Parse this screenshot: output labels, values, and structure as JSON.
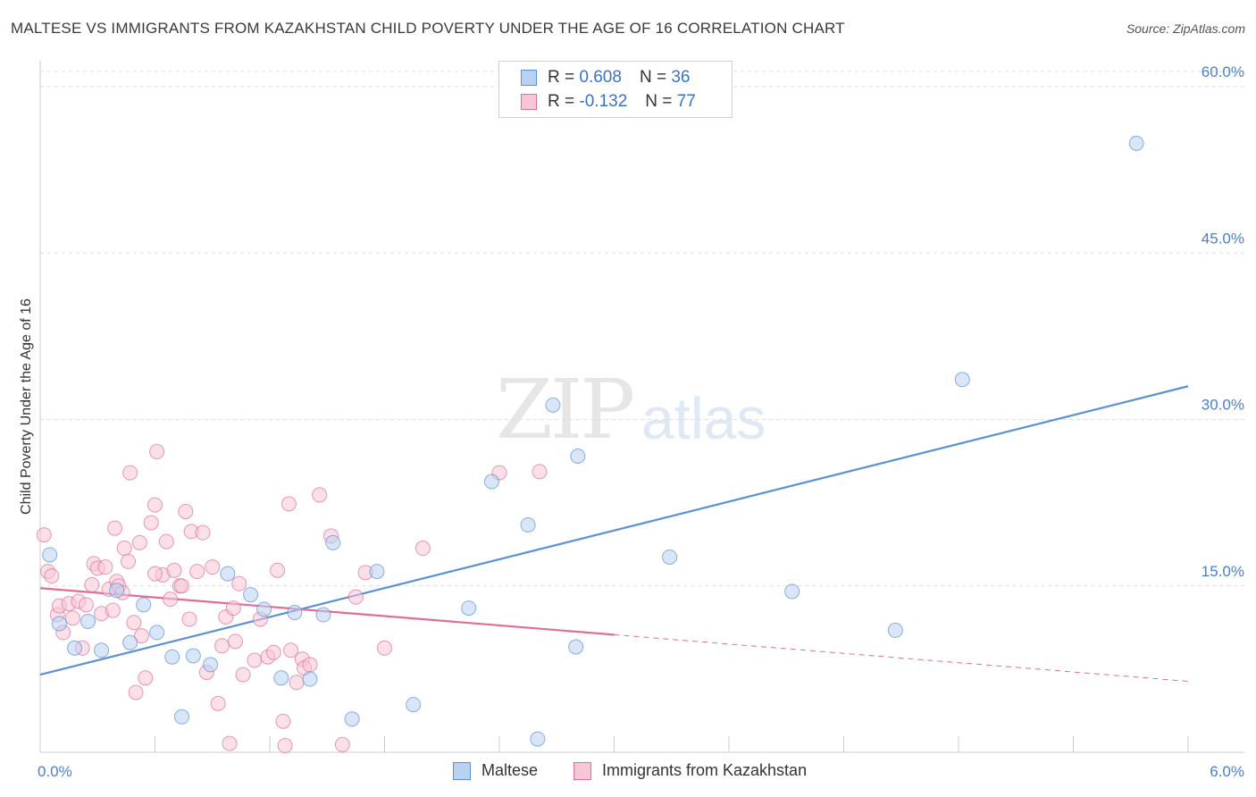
{
  "title": "MALTESE VS IMMIGRANTS FROM KAZAKHSTAN CHILD POVERTY UNDER THE AGE OF 16 CORRELATION CHART",
  "source": "Source: ZipAtlas.com",
  "watermark": {
    "zip": "ZIP",
    "atlas": "atlas"
  },
  "legend": {
    "maltese": {
      "r_label": "R =",
      "r_value": "0.608",
      "n_label": "N =",
      "n_value": "36",
      "color": "#5b8fd6",
      "fill": "#b9d1f3"
    },
    "kazakhstan": {
      "r_label": "R =",
      "r_value": "-0.132",
      "n_label": "N =",
      "n_value": "77",
      "color": "#e06d96",
      "fill": "#f8c6d6"
    }
  },
  "bottom_legend": {
    "maltese": "Maltese",
    "kazakhstan": "Immigrants from Kazakhstan"
  },
  "chart_data": {
    "type": "scatter",
    "title": "MALTESE VS IMMIGRANTS FROM KAZAKHSTAN CHILD POVERTY UNDER THE AGE OF 16 CORRELATION CHART",
    "xlabel": "",
    "ylabel": "Child Poverty Under the Age of 16",
    "xlim": [
      0,
      6.0
    ],
    "ylim": [
      0,
      60
    ],
    "x_tick_labels": [
      "0.0%",
      "6.0%"
    ],
    "y_ticks": [
      15,
      30,
      45,
      60
    ],
    "y_tick_labels": [
      "15.0%",
      "30.0%",
      "45.0%",
      "60.0%"
    ],
    "grid": true,
    "series": [
      {
        "name": "Maltese",
        "color": "#5b8fd6",
        "points": [
          [
            0.05,
            17.8
          ],
          [
            0.1,
            11.6
          ],
          [
            0.18,
            9.4
          ],
          [
            0.25,
            11.8
          ],
          [
            0.32,
            9.2
          ],
          [
            0.4,
            14.6
          ],
          [
            0.47,
            9.9
          ],
          [
            0.54,
            13.3
          ],
          [
            0.61,
            10.8
          ],
          [
            0.69,
            8.6
          ],
          [
            0.74,
            3.2
          ],
          [
            0.8,
            8.7
          ],
          [
            0.89,
            7.9
          ],
          [
            0.98,
            16.1
          ],
          [
            1.1,
            14.2
          ],
          [
            1.17,
            12.9
          ],
          [
            1.26,
            6.7
          ],
          [
            1.33,
            12.6
          ],
          [
            1.41,
            6.6
          ],
          [
            1.48,
            12.4
          ],
          [
            1.53,
            18.9
          ],
          [
            1.63,
            3.0
          ],
          [
            1.76,
            16.3
          ],
          [
            1.95,
            4.3
          ],
          [
            2.24,
            13.0
          ],
          [
            2.36,
            24.4
          ],
          [
            2.55,
            20.5
          ],
          [
            2.6,
            1.2
          ],
          [
            2.68,
            31.3
          ],
          [
            2.8,
            9.5
          ],
          [
            2.81,
            26.7
          ],
          [
            3.29,
            17.6
          ],
          [
            3.93,
            14.5
          ],
          [
            4.47,
            11.0
          ],
          [
            4.82,
            33.6
          ],
          [
            5.73,
            54.9
          ]
        ],
        "trend": {
          "x": [
            0.0,
            6.0
          ],
          "y": [
            7.0,
            33.0
          ]
        }
      },
      {
        "name": "Immigrants from Kazakhstan",
        "color": "#e06d96",
        "points": [
          [
            0.02,
            19.6
          ],
          [
            0.04,
            16.3
          ],
          [
            0.06,
            15.9
          ],
          [
            0.09,
            12.4
          ],
          [
            0.1,
            13.2
          ],
          [
            0.12,
            10.8
          ],
          [
            0.15,
            13.4
          ],
          [
            0.17,
            12.1
          ],
          [
            0.2,
            13.6
          ],
          [
            0.22,
            9.4
          ],
          [
            0.24,
            13.3
          ],
          [
            0.27,
            15.1
          ],
          [
            0.28,
            17.0
          ],
          [
            0.3,
            16.6
          ],
          [
            0.32,
            12.5
          ],
          [
            0.34,
            16.7
          ],
          [
            0.36,
            14.7
          ],
          [
            0.38,
            12.8
          ],
          [
            0.39,
            20.2
          ],
          [
            0.4,
            15.4
          ],
          [
            0.41,
            15.0
          ],
          [
            0.43,
            14.4
          ],
          [
            0.44,
            18.4
          ],
          [
            0.46,
            17.2
          ],
          [
            0.47,
            25.2
          ],
          [
            0.49,
            11.7
          ],
          [
            0.5,
            5.4
          ],
          [
            0.52,
            18.9
          ],
          [
            0.53,
            10.5
          ],
          [
            0.55,
            6.7
          ],
          [
            0.58,
            20.7
          ],
          [
            0.6,
            22.3
          ],
          [
            0.61,
            27.1
          ],
          [
            0.64,
            16.0
          ],
          [
            0.66,
            19.0
          ],
          [
            0.68,
            13.8
          ],
          [
            0.7,
            16.4
          ],
          [
            0.73,
            15.0
          ],
          [
            0.74,
            15.0
          ],
          [
            0.76,
            21.7
          ],
          [
            0.78,
            12.0
          ],
          [
            0.79,
            19.9
          ],
          [
            0.82,
            16.3
          ],
          [
            0.85,
            19.8
          ],
          [
            0.87,
            7.2
          ],
          [
            0.9,
            16.7
          ],
          [
            0.93,
            4.4
          ],
          [
            0.95,
            9.6
          ],
          [
            0.97,
            12.2
          ],
          [
            0.99,
            0.8
          ],
          [
            1.01,
            13.0
          ],
          [
            1.02,
            10.0
          ],
          [
            1.04,
            15.2
          ],
          [
            1.06,
            7.0
          ],
          [
            1.12,
            8.3
          ],
          [
            1.15,
            12.0
          ],
          [
            1.19,
            8.6
          ],
          [
            1.22,
            9.0
          ],
          [
            1.24,
            16.4
          ],
          [
            1.27,
            2.8
          ],
          [
            1.28,
            0.6
          ],
          [
            1.3,
            22.4
          ],
          [
            1.31,
            9.2
          ],
          [
            1.34,
            6.3
          ],
          [
            1.37,
            8.4
          ],
          [
            1.38,
            7.6
          ],
          [
            1.41,
            7.9
          ],
          [
            1.46,
            23.2
          ],
          [
            1.52,
            19.5
          ],
          [
            1.58,
            0.7
          ],
          [
            1.65,
            14.0
          ],
          [
            1.7,
            16.2
          ],
          [
            1.8,
            9.4
          ],
          [
            2.0,
            18.4
          ],
          [
            2.4,
            25.2
          ],
          [
            2.61,
            25.3
          ],
          [
            0.6,
            16.1
          ]
        ],
        "trend": {
          "x": [
            0.0,
            3.0
          ],
          "y": [
            14.8,
            10.6
          ]
        },
        "trend_dashed": {
          "x": [
            3.0,
            6.0
          ],
          "y": [
            10.6,
            6.4
          ]
        }
      }
    ]
  }
}
